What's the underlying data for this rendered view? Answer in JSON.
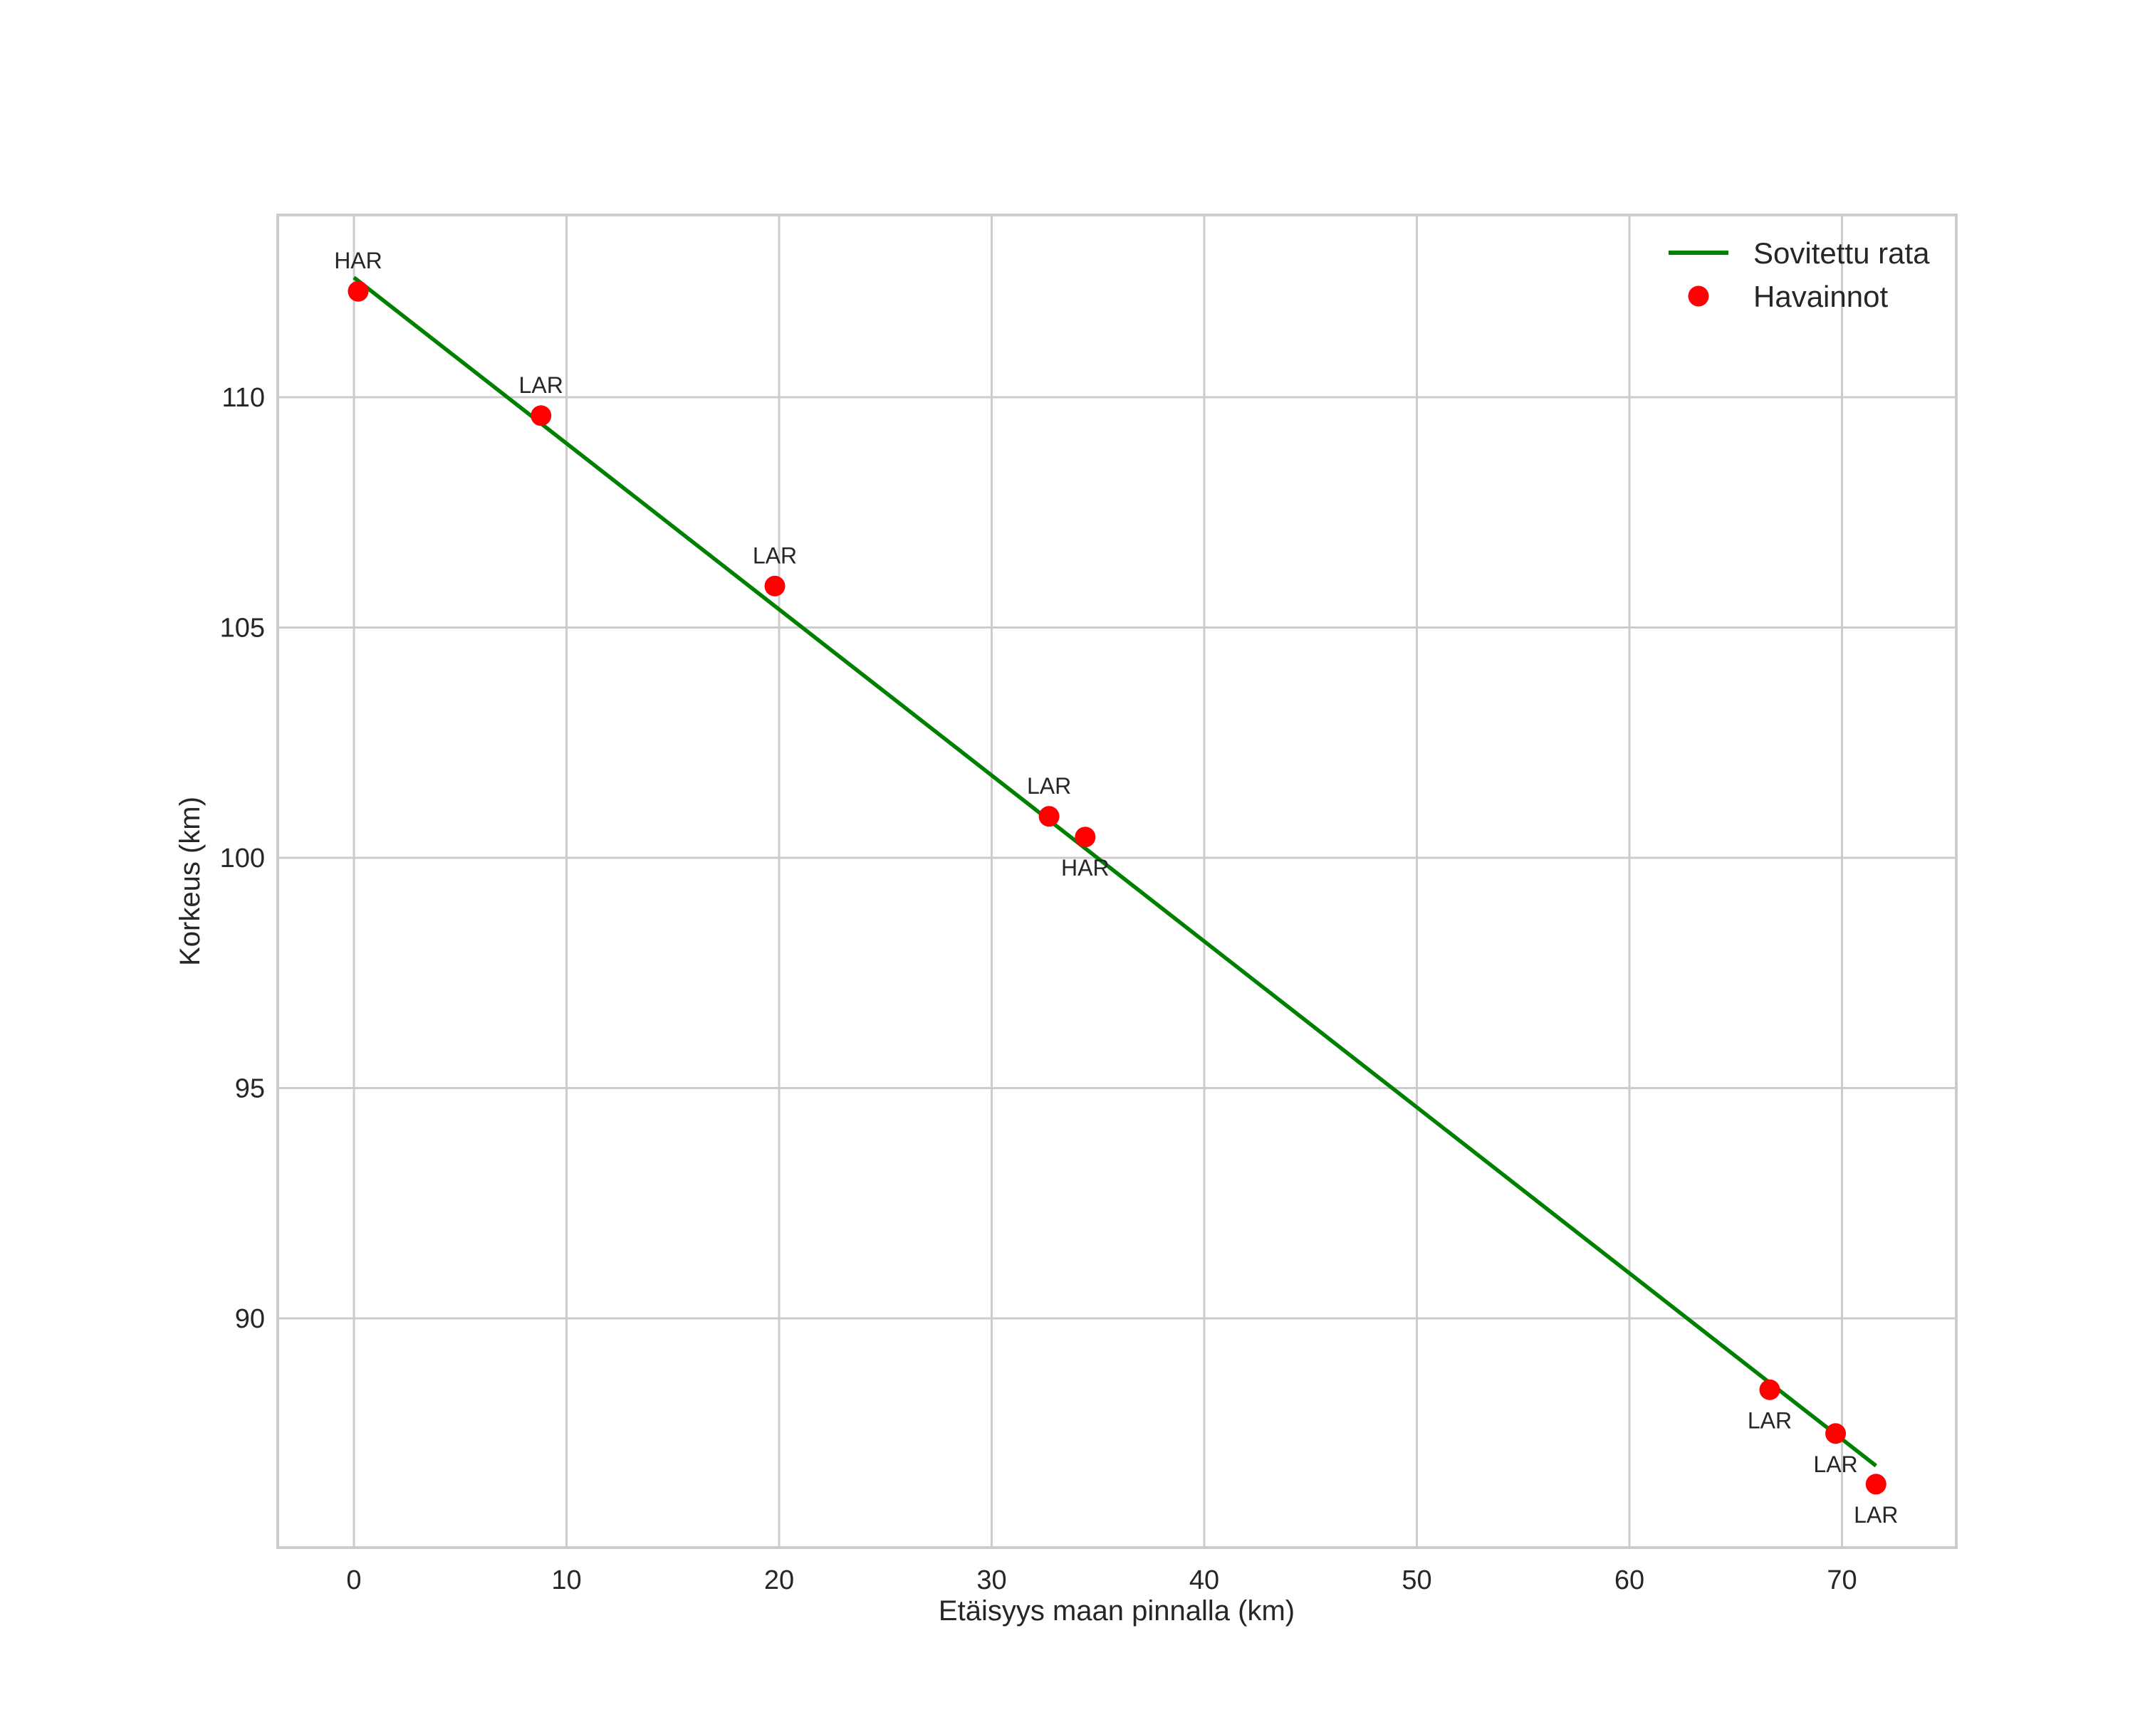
{
  "chart_data": {
    "type": "scatter",
    "title": "",
    "xlabel": "Etäisyys maan pinnalla (km)",
    "ylabel": "Korkeus (km)",
    "xlim": [
      -3.6,
      75.3
    ],
    "ylim": [
      85.1,
      114.0
    ],
    "x_ticks": [
      0,
      10,
      20,
      30,
      40,
      50,
      60,
      70
    ],
    "y_ticks": [
      90,
      95,
      100,
      105,
      110
    ],
    "grid": true,
    "legend_position": "upper right",
    "legend": [
      "Sovitettu rata",
      "Havainnot"
    ],
    "series": [
      {
        "name": "Sovitettu rata",
        "kind": "line",
        "color": "#008000",
        "x": [
          0.0,
          71.6
        ],
        "y": [
          112.6,
          86.8
        ]
      },
      {
        "name": "Havainnot",
        "kind": "scatter",
        "color": "#ff0000",
        "points": [
          {
            "x": 0.2,
            "y": 112.3,
            "label": "HAR"
          },
          {
            "x": 8.8,
            "y": 109.6,
            "label": "LAR"
          },
          {
            "x": 19.8,
            "y": 105.9,
            "label": "LAR"
          },
          {
            "x": 32.7,
            "y": 100.9,
            "label": "LAR"
          },
          {
            "x": 34.4,
            "y": 100.45,
            "label": "HAR"
          },
          {
            "x": 66.6,
            "y": 88.45,
            "label": "LAR"
          },
          {
            "x": 69.7,
            "y": 87.5,
            "label": "LAR"
          },
          {
            "x": 71.6,
            "y": 86.4,
            "label": "LAR"
          }
        ]
      }
    ]
  },
  "labels": {
    "xlabel": "Etäisyys maan pinnalla (km)",
    "ylabel": "Korkeus (km)",
    "legend_line": "Sovitettu rata",
    "legend_points": "Havainnot"
  }
}
